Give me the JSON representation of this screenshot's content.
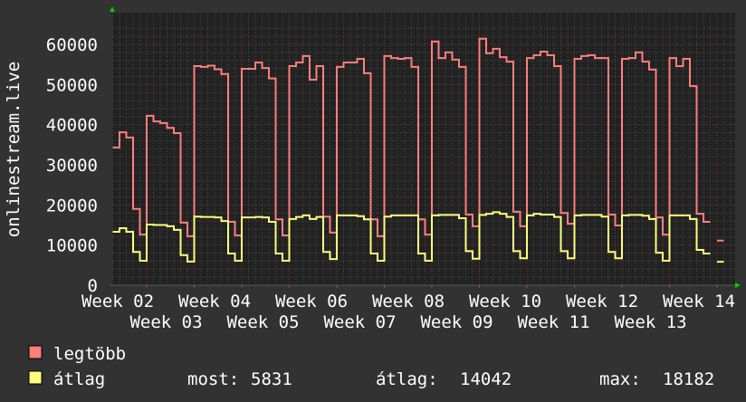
{
  "chart_data": {
    "type": "line",
    "title": "",
    "ylabel": "onlinestream.live",
    "xlabel": "",
    "ylim": [
      0,
      65000
    ],
    "yticks": [
      0,
      10000,
      20000,
      30000,
      40000,
      50000,
      60000
    ],
    "ytick_labels": [
      "0",
      "10000",
      "20000",
      "30000",
      "40000",
      "50000",
      "60000"
    ],
    "xtick_labels": [
      "Week 02",
      "Week 03",
      "Week 04",
      "Week 05",
      "Week 06",
      "Week 07",
      "Week 08",
      "Week 09",
      "Week 10",
      "Week 11",
      "Week 12",
      "Week 13",
      "Week 14"
    ],
    "grid": true,
    "legend_placement": "bottom-left",
    "step": "daily",
    "series": [
      {
        "name": "legtöbb",
        "color": "#ff7f7f",
        "values": [
          34300,
          38100,
          36800,
          19000,
          12600,
          42200,
          40800,
          40400,
          39200,
          37900,
          15600,
          12200,
          54600,
          54400,
          54700,
          53800,
          52600,
          15800,
          12400,
          53900,
          53900,
          55500,
          54100,
          51500,
          16400,
          12400,
          54600,
          55500,
          57100,
          51200,
          54600,
          17100,
          13100,
          54400,
          55500,
          55500,
          56400,
          52800,
          16400,
          12200,
          57100,
          56600,
          56400,
          56600,
          54400,
          16400,
          12600,
          60700,
          56600,
          58000,
          56200,
          54400,
          17600,
          14700,
          61400,
          57800,
          58900,
          56800,
          55700,
          18300,
          14700,
          56600,
          57300,
          58200,
          57300,
          54600,
          18000,
          15300,
          56400,
          57100,
          57300,
          56600,
          56600,
          17600,
          14900,
          56400,
          56600,
          58000,
          55700,
          53700,
          16900,
          12600,
          56600,
          54600,
          56400,
          49600,
          17800,
          15800,
          null,
          11100
        ]
      },
      {
        "name": "átlag",
        "color": "#ffff7f",
        "values": [
          13300,
          14200,
          13300,
          8300,
          6100,
          15100,
          15000,
          15000,
          14700,
          13800,
          7500,
          5900,
          17100,
          17000,
          17000,
          16900,
          16000,
          7900,
          6100,
          16900,
          16900,
          17000,
          16900,
          15800,
          7900,
          6100,
          16500,
          17000,
          17400,
          16500,
          17000,
          8300,
          6500,
          17400,
          17400,
          17400,
          17200,
          16400,
          7900,
          6100,
          17100,
          17400,
          17400,
          17400,
          17400,
          7900,
          6100,
          17400,
          17500,
          17500,
          17500,
          16700,
          8500,
          6600,
          17500,
          17800,
          18182,
          17800,
          17000,
          8500,
          6700,
          17400,
          17800,
          17600,
          17600,
          17000,
          8500,
          6700,
          17400,
          17500,
          17500,
          17500,
          17100,
          8300,
          6700,
          17400,
          17500,
          17500,
          17300,
          16500,
          8100,
          6100,
          17400,
          17400,
          17400,
          16500,
          8800,
          7900,
          null,
          5831
        ],
        "stats": {
          "current_label": "most:",
          "current": "5831",
          "average_label": "átlag:",
          "average": "14042",
          "max_label": "max:",
          "max": "18182"
        }
      }
    ]
  },
  "colors": {
    "background": "#323232",
    "plot_background": "#222222",
    "major_grid": "#7a3a3a",
    "minor_grid": "#4a4a4a",
    "arrow": "#00cc00"
  }
}
